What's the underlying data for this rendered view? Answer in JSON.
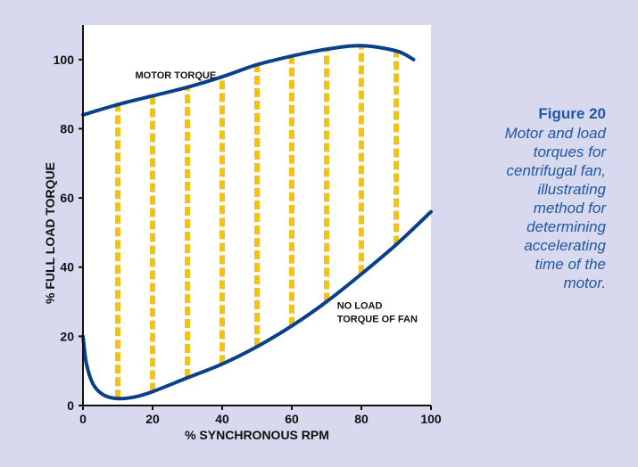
{
  "chart_data": {
    "type": "line",
    "xlabel": "% SYNCHRONOUS RPM",
    "ylabel": "% FULL LOAD TORQUE",
    "xlim": [
      0,
      100
    ],
    "ylim": [
      0,
      110
    ],
    "xticks": [
      0,
      20,
      40,
      60,
      80,
      100
    ],
    "yticks": [
      0,
      20,
      40,
      60,
      80,
      100
    ],
    "grid": false,
    "series": [
      {
        "name": "MOTOR TORQUE",
        "x": [
          0,
          10,
          20,
          30,
          40,
          50,
          60,
          70,
          80,
          90,
          95
        ],
        "y": [
          84,
          87,
          89.5,
          92,
          95,
          98.5,
          101,
          103,
          104,
          102.5,
          100
        ]
      },
      {
        "name": "NO LOAD TORQUE OF FAN",
        "x": [
          0,
          1,
          3,
          6,
          10,
          15,
          20,
          30,
          40,
          50,
          60,
          70,
          80,
          90,
          100
        ],
        "y": [
          20,
          12,
          6,
          3,
          2,
          2.5,
          4,
          8,
          12,
          17,
          23,
          30,
          38,
          46.5,
          56
        ]
      }
    ],
    "increments": {
      "x": [
        10,
        20,
        30,
        40,
        50,
        60,
        70,
        80,
        90
      ],
      "y_low": [
        2,
        4,
        8,
        12,
        17,
        23,
        30,
        38,
        46.5
      ],
      "y_high": [
        87,
        89.5,
        92,
        95,
        98.5,
        101,
        103,
        104,
        102.5
      ]
    },
    "annotations": [
      {
        "lines": [
          "MOTOR TORQUE"
        ],
        "x": 15,
        "y": 94.5
      },
      {
        "lines": [
          "NO LOAD",
          "TORQUE OF FAN"
        ],
        "x": 73,
        "y": 28
      }
    ],
    "colors": {
      "curve": "#0a3f8c",
      "increment": "#f2c218",
      "background": "#d8d8ee",
      "plot_bg": "#ffffff"
    }
  },
  "figure": {
    "title": "Figure 20",
    "caption_lines": [
      "Motor and load",
      "torques for",
      "centrifugal fan,",
      "illustrating",
      "method for",
      "determining",
      "accelerating",
      "time of the",
      "motor."
    ]
  }
}
